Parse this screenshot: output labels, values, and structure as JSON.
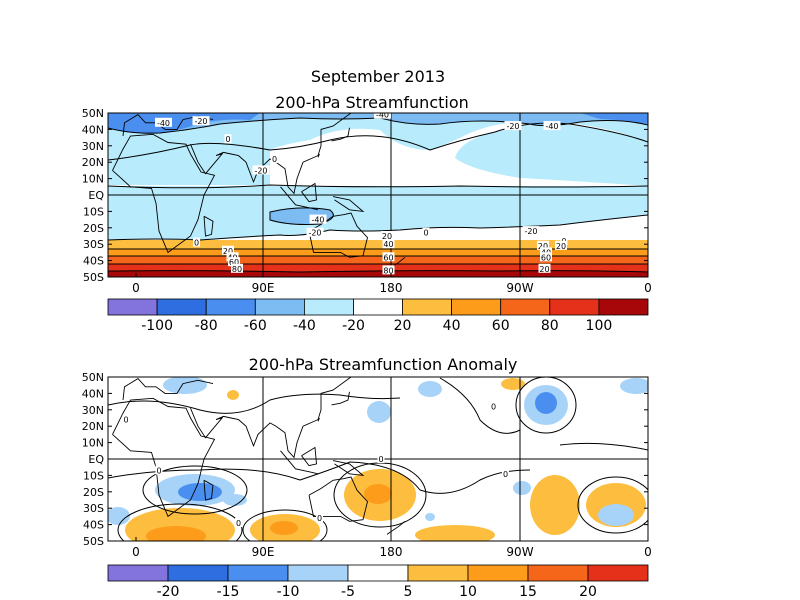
{
  "title": "September 2013",
  "chart_data": [
    {
      "type": "heatmap",
      "title": "200-hPa Streamfunction",
      "y_ticks": [
        "50N",
        "40N",
        "30N",
        "20N",
        "10N",
        "EQ",
        "10S",
        "20S",
        "30S",
        "40S",
        "50S"
      ],
      "x_ticks": [
        "0",
        "90E",
        "180",
        "90W",
        "0"
      ],
      "colorbar": {
        "labels": [
          "-100",
          "-80",
          "-60",
          "-40",
          "-20",
          "20",
          "40",
          "60",
          "80",
          "100"
        ],
        "colors": [
          "#8373dd",
          "#2f6ee0",
          "#4a8ff0",
          "#7cbcf2",
          "#b8ebfb",
          "#ffffff",
          "#fdbe3f",
          "#fc9c1a",
          "#f5661b",
          "#e5301a",
          "#a8070a"
        ]
      },
      "contour_labels": [
        {
          "text": "-20",
          "lon": 42,
          "lat": 45
        },
        {
          "text": "-40",
          "lon": 17,
          "lat": 44
        },
        {
          "text": "-40",
          "lon": 163,
          "lat": 49
        },
        {
          "text": "-20",
          "lon": 250,
          "lat": 42
        },
        {
          "text": "-40",
          "lon": 276,
          "lat": 42
        },
        {
          "text": "0",
          "lon": 60,
          "lat": 34
        },
        {
          "text": "-20",
          "lon": 82,
          "lat": 15
        },
        {
          "text": "0",
          "lon": 91,
          "lat": 22
        },
        {
          "text": "-40",
          "lon": 120,
          "lat": -15
        },
        {
          "text": "-20",
          "lon": 118,
          "lat": -23
        },
        {
          "text": "0",
          "lon": 192,
          "lat": -23
        },
        {
          "text": "-20",
          "lon": 262,
          "lat": -22
        },
        {
          "text": "0",
          "lon": 284,
          "lat": -28
        },
        {
          "text": "0",
          "lon": 39,
          "lat": -29
        },
        {
          "text": "20",
          "lon": 60,
          "lat": -34
        },
        {
          "text": "40",
          "lon": 63,
          "lat": -38
        },
        {
          "text": "60",
          "lon": 64,
          "lat": -41
        },
        {
          "text": "80",
          "lon": 66,
          "lat": -45
        },
        {
          "text": "20",
          "lon": 166,
          "lat": -25
        },
        {
          "text": "40",
          "lon": 167,
          "lat": -30
        },
        {
          "text": "60",
          "lon": 167,
          "lat": -38
        },
        {
          "text": "80",
          "lon": 167,
          "lat": -46
        },
        {
          "text": "20",
          "lon": 270,
          "lat": -31
        },
        {
          "text": "40",
          "lon": 272,
          "lat": -35
        },
        {
          "text": "60",
          "lon": 272,
          "lat": -38
        },
        {
          "text": "20",
          "lon": 271,
          "lat": -45
        },
        {
          "text": "20",
          "lon": 282,
          "lat": -31
        }
      ]
    },
    {
      "type": "heatmap",
      "title": "200-hPa Streamfunction Anomaly",
      "y_ticks": [
        "50N",
        "40N",
        "30N",
        "20N",
        "10N",
        "EQ",
        "10S",
        "20S",
        "30S",
        "40S",
        "50S"
      ],
      "x_ticks": [
        "0",
        "90E",
        "180",
        "90W",
        "0"
      ],
      "colorbar": {
        "labels": [
          "-20",
          "-15",
          "-10",
          "-5",
          "5",
          "10",
          "15",
          "20"
        ],
        "colors": [
          "#8373dd",
          "#2f6ee0",
          "#4a8ff0",
          "#a7d3f8",
          "#ffffff",
          "#fdbe3f",
          "#fc9c1a",
          "#f5661b",
          "#e5301a"
        ]
      },
      "contour_labels": [
        {
          "text": "0",
          "lon": -8,
          "lat": 24
        },
        {
          "text": "0",
          "lon": 14,
          "lat": -7
        },
        {
          "text": "0",
          "lon": 162,
          "lat": 0
        },
        {
          "text": "0",
          "lon": 245,
          "lat": -9
        },
        {
          "text": "0",
          "lon": 237,
          "lat": 32
        },
        {
          "text": "0",
          "lon": 67,
          "lat": -39
        },
        {
          "text": "0",
          "lon": 121,
          "lat": -36
        }
      ]
    }
  ]
}
